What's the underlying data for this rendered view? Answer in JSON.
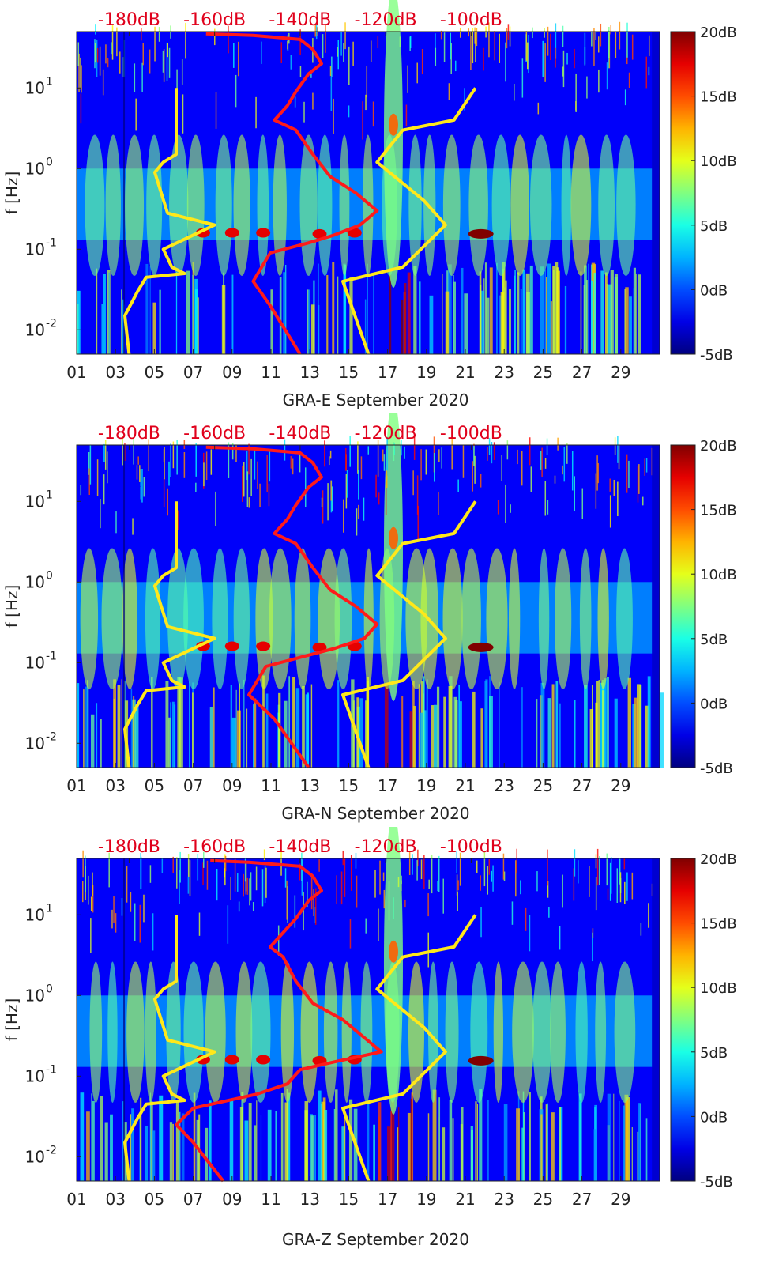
{
  "colors": {
    "psd_model": "#ff1a1a",
    "noise_model": "#ffe81a",
    "axis_label": "#e0001b"
  },
  "chart_data": [
    {
      "type": "heatmap",
      "title": "GRA-E September 2020",
      "xlabel": "GRA-E September 2020",
      "ylabel": "f [Hz]",
      "x_ticks": [
        "01",
        "03",
        "05",
        "07",
        "09",
        "11",
        "13",
        "15",
        "17",
        "19",
        "21",
        "23",
        "25",
        "27",
        "29"
      ],
      "y_ticks": [
        "10^-2",
        "10^-1",
        "10^0",
        "10^1"
      ],
      "top_axis_ticks": [
        "-180dB",
        "-160dB",
        "-140dB",
        "-120dB",
        "-100dB"
      ],
      "colorbar_ticks": [
        "20dB",
        "15dB",
        "10dB",
        "5dB",
        "0dB",
        "-5dB"
      ],
      "color_range": [
        -5,
        20
      ],
      "ylim": [
        0.005,
        50
      ],
      "xlim": [
        1,
        31
      ],
      "series": [
        {
          "name": "yellow model curve (dB, top axis)",
          "points": [
            [
              -180,
              0.005
            ],
            [
              -181,
              0.015
            ],
            [
              -178,
              0.03
            ],
            [
              -176,
              0.045
            ],
            [
              -167,
              0.05
            ],
            [
              -170,
              0.06
            ],
            [
              -172,
              0.1
            ],
            [
              -160,
              0.2
            ],
            [
              -171,
              0.28
            ],
            [
              -174,
              0.9
            ],
            [
              -172,
              1.2
            ],
            [
              -169,
              1.5
            ],
            [
              -169,
              10
            ],
            [
              -124,
              0.005
            ],
            [
              -130,
              0.04
            ],
            [
              -116,
              0.06
            ],
            [
              -106,
              0.2
            ],
            [
              -111,
              0.4
            ],
            [
              -122,
              1.2
            ],
            [
              -116,
              3
            ],
            [
              -104,
              4
            ],
            [
              -99,
              10
            ]
          ]
        },
        {
          "name": "red model curve (dB, top axis)",
          "points": [
            [
              -140,
              0.005
            ],
            [
              -147,
              0.02
            ],
            [
              -151,
              0.04
            ],
            [
              -147,
              0.09
            ],
            [
              -138,
              0.12
            ],
            [
              -132,
              0.15
            ],
            [
              -126,
              0.2
            ],
            [
              -122,
              0.3
            ],
            [
              -127,
              0.5
            ],
            [
              -133,
              0.8
            ],
            [
              -137,
              1.5
            ],
            [
              -141,
              3
            ],
            [
              -146,
              4
            ],
            [
              -143,
              6
            ],
            [
              -141,
              9
            ],
            [
              -138,
              15
            ],
            [
              -135,
              20
            ],
            [
              -137,
              30
            ],
            [
              -140,
              40
            ],
            [
              -151,
              45
            ],
            [
              -162,
              47
            ]
          ]
        }
      ]
    },
    {
      "type": "heatmap",
      "title": "GRA-N September 2020",
      "xlabel": "GRA-N September 2020",
      "ylabel": "f [Hz]",
      "x_ticks": [
        "01",
        "03",
        "05",
        "07",
        "09",
        "11",
        "13",
        "15",
        "17",
        "19",
        "21",
        "23",
        "25",
        "27",
        "29"
      ],
      "y_ticks": [
        "10^-2",
        "10^-1",
        "10^0",
        "10^1"
      ],
      "top_axis_ticks": [
        "-180dB",
        "-160dB",
        "-140dB",
        "-120dB",
        "-100dB"
      ],
      "colorbar_ticks": [
        "20dB",
        "15dB",
        "10dB",
        "5dB",
        "0dB",
        "-5dB"
      ],
      "color_range": [
        -5,
        20
      ],
      "ylim": [
        0.005,
        50
      ],
      "xlim": [
        1,
        31
      ],
      "series": [
        {
          "name": "yellow model curve (dB, top axis)",
          "points": [
            [
              -180,
              0.005
            ],
            [
              -181,
              0.015
            ],
            [
              -178,
              0.03
            ],
            [
              -176,
              0.045
            ],
            [
              -167,
              0.05
            ],
            [
              -170,
              0.06
            ],
            [
              -172,
              0.1
            ],
            [
              -160,
              0.2
            ],
            [
              -171,
              0.28
            ],
            [
              -174,
              0.9
            ],
            [
              -172,
              1.2
            ],
            [
              -169,
              1.5
            ],
            [
              -169,
              10
            ],
            [
              -124,
              0.005
            ],
            [
              -130,
              0.04
            ],
            [
              -116,
              0.06
            ],
            [
              -106,
              0.2
            ],
            [
              -111,
              0.4
            ],
            [
              -122,
              1.2
            ],
            [
              -116,
              3
            ],
            [
              -104,
              4
            ],
            [
              -99,
              10
            ]
          ]
        },
        {
          "name": "red model curve (dB, top axis)",
          "points": [
            [
              -138,
              0.005
            ],
            [
              -146,
              0.02
            ],
            [
              -152,
              0.04
            ],
            [
              -148,
              0.09
            ],
            [
              -139,
              0.12
            ],
            [
              -132,
              0.15
            ],
            [
              -125,
              0.2
            ],
            [
              -122,
              0.3
            ],
            [
              -127,
              0.5
            ],
            [
              -133,
              0.8
            ],
            [
              -137,
              1.5
            ],
            [
              -141,
              3
            ],
            [
              -146,
              4
            ],
            [
              -143,
              6
            ],
            [
              -141,
              9
            ],
            [
              -138,
              15
            ],
            [
              -135,
              20
            ],
            [
              -137,
              30
            ],
            [
              -140,
              40
            ],
            [
              -151,
              45
            ],
            [
              -162,
              47
            ]
          ]
        }
      ]
    },
    {
      "type": "heatmap",
      "title": "GRA-Z September 2020",
      "xlabel": "GRA-Z September 2020",
      "ylabel": "f [Hz]",
      "x_ticks": [
        "01",
        "03",
        "05",
        "07",
        "09",
        "11",
        "13",
        "15",
        "17",
        "19",
        "21",
        "23",
        "25",
        "27",
        "29"
      ],
      "y_ticks": [
        "10^-2",
        "10^-1",
        "10^0",
        "10^1"
      ],
      "top_axis_ticks": [
        "-180dB",
        "-160dB",
        "-140dB",
        "-120dB",
        "-100dB"
      ],
      "colorbar_ticks": [
        "20dB",
        "15dB",
        "10dB",
        "5dB",
        "0dB",
        "-5dB"
      ],
      "color_range": [
        -5,
        20
      ],
      "ylim": [
        0.005,
        50
      ],
      "xlim": [
        1,
        31
      ],
      "series": [
        {
          "name": "yellow model curve (dB, top axis)",
          "points": [
            [
              -180,
              0.005
            ],
            [
              -181,
              0.015
            ],
            [
              -178,
              0.03
            ],
            [
              -176,
              0.045
            ],
            [
              -167,
              0.05
            ],
            [
              -170,
              0.06
            ],
            [
              -172,
              0.1
            ],
            [
              -160,
              0.2
            ],
            [
              -171,
              0.28
            ],
            [
              -174,
              0.9
            ],
            [
              -172,
              1.2
            ],
            [
              -169,
              1.5
            ],
            [
              -169,
              10
            ],
            [
              -124,
              0.005
            ],
            [
              -130,
              0.04
            ],
            [
              -116,
              0.06
            ],
            [
              -106,
              0.2
            ],
            [
              -111,
              0.4
            ],
            [
              -122,
              1.2
            ],
            [
              -116,
              3
            ],
            [
              -104,
              4
            ],
            [
              -99,
              10
            ]
          ]
        },
        {
          "name": "red model curve (dB, top axis)",
          "points": [
            [
              -158,
              0.005
            ],
            [
              -165,
              0.015
            ],
            [
              -169,
              0.025
            ],
            [
              -165,
              0.04
            ],
            [
              -150,
              0.06
            ],
            [
              -143,
              0.08
            ],
            [
              -140,
              0.12
            ],
            [
              -132,
              0.15
            ],
            [
              -121,
              0.2
            ],
            [
              -125,
              0.3
            ],
            [
              -130,
              0.5
            ],
            [
              -137,
              0.8
            ],
            [
              -141,
              1.5
            ],
            [
              -144,
              3
            ],
            [
              -147,
              4
            ],
            [
              -144,
              6
            ],
            [
              -141,
              9
            ],
            [
              -138,
              15
            ],
            [
              -135,
              20
            ],
            [
              -137,
              30
            ],
            [
              -140,
              40
            ],
            [
              -152,
              45
            ],
            [
              -161,
              47
            ]
          ]
        }
      ]
    }
  ]
}
